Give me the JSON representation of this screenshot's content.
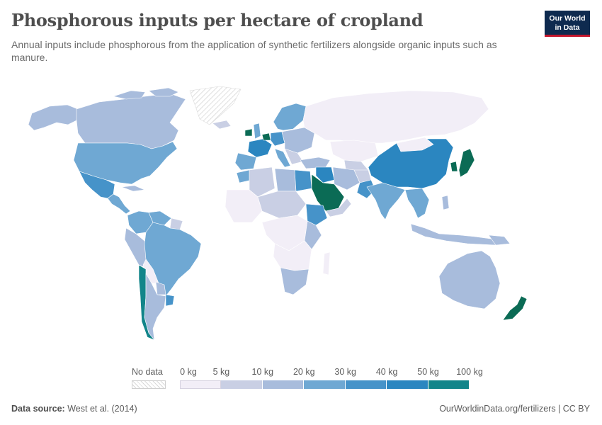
{
  "header": {
    "title": "Phosphorous inputs per hectare of cropland",
    "subtitle": "Annual inputs include phosphorous from the application of synthetic fertilizers alongside organic inputs such as manure."
  },
  "logo": {
    "line1": "Our World",
    "line2": "in Data"
  },
  "legend": {
    "no_data_label": "No data",
    "bins": [
      {
        "label": "0 kg",
        "color": "#f2eef7"
      },
      {
        "label": "5 kg",
        "color": "#c9cfe4"
      },
      {
        "label": "10 kg",
        "color": "#a8bcdc"
      },
      {
        "label": "20 kg",
        "color": "#6fa8d3"
      },
      {
        "label": "30 kg",
        "color": "#4693c9"
      },
      {
        "label": "40 kg",
        "color": "#2b86c0"
      },
      {
        "label": "50 kg",
        "color": "#12858a"
      },
      {
        "label": "100 kg",
        "color": "#0b6b55"
      }
    ]
  },
  "colors": {
    "ocean": "#ffffff",
    "border": "#ffffff",
    "nodata": "#e9e9e9"
  },
  "footer": {
    "source_label": "Data source:",
    "source_value": "West et al. (2014)",
    "credit": "OurWorldinData.org/fertilizers | CC BY"
  }
}
